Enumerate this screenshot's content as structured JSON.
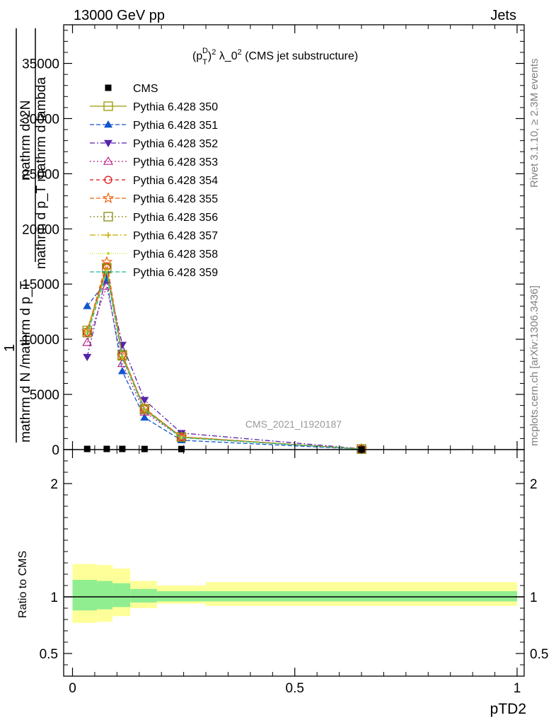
{
  "header": {
    "left": "13000 GeV pp",
    "right": "Jets"
  },
  "side_labels": {
    "rivet": "Rivet 3.1.10, ≥ 2.3M events",
    "mcplots": "mcplots.cern.ch [arXiv:1306.3436]"
  },
  "watermark": "CMS_2021_I1920187",
  "plot_title": "(p_T^D)^2 λ_0^2 (CMS jet substructure)",
  "ylabel_main": {
    "frac_one": "1",
    "denominator": "mathrm d N /mathrm d p_T",
    "numerator_top": "mathrm d^2N",
    "numerator_bottom": "mathrm d p_T mathrm d lambda"
  },
  "ylabel_ratio": "Ratio to CMS",
  "xlabel": "pTD2",
  "colors": {
    "data": "#000000",
    "band_inner": "#90ee90",
    "band_outer": "#ffff99"
  },
  "chart_data": {
    "type": "line",
    "x_axis": {
      "range": [
        -0.02,
        1.02
      ],
      "ticks": [
        0,
        0.5,
        1
      ],
      "tick_labels": [
        "0",
        "0.5",
        "1"
      ]
    },
    "main_y_axis": {
      "range": [
        0,
        38500
      ],
      "ticks": [
        0,
        5000,
        10000,
        15000,
        20000,
        25000,
        30000,
        35000
      ],
      "tick_labels": [
        "0",
        "5000",
        "10000",
        "15000",
        "20000",
        "25000",
        "30000",
        "35000"
      ]
    },
    "ratio_y_axis": {
      "range": [
        0.3,
        2.3
      ],
      "ticks": [
        0.5,
        1,
        2
      ],
      "tick_labels": [
        "0.5",
        "1",
        "2"
      ]
    },
    "x": [
      0.033,
      0.077,
      0.112,
      0.162,
      0.245,
      0.65
    ],
    "data": {
      "name": "CMS",
      "y": [
        60,
        60,
        60,
        55,
        50,
        5
      ]
    },
    "ratio_bands": [
      {
        "xlo": 0.0,
        "xhi": 0.055,
        "inner": [
          0.88,
          1.15
        ],
        "outer": [
          0.77,
          1.29
        ]
      },
      {
        "xlo": 0.055,
        "xhi": 0.09,
        "inner": [
          0.89,
          1.14
        ],
        "outer": [
          0.78,
          1.28
        ]
      },
      {
        "xlo": 0.09,
        "xhi": 0.13,
        "inner": [
          0.91,
          1.12
        ],
        "outer": [
          0.83,
          1.25
        ]
      },
      {
        "xlo": 0.13,
        "xhi": 0.19,
        "inner": [
          0.95,
          1.07
        ],
        "outer": [
          0.9,
          1.14
        ]
      },
      {
        "xlo": 0.19,
        "xhi": 0.3,
        "inner": [
          0.96,
          1.05
        ],
        "outer": [
          0.94,
          1.1
        ]
      },
      {
        "xlo": 0.3,
        "xhi": 1.0,
        "inner": [
          0.96,
          1.05
        ],
        "outer": [
          0.92,
          1.13
        ]
      }
    ],
    "series": [
      {
        "name": "Pythia 6.428 350",
        "color": "#999900",
        "marker": "square-open",
        "dash": "",
        "y": [
          10800,
          16500,
          8600,
          3700,
          1150,
          50
        ]
      },
      {
        "name": "Pythia 6.428 351",
        "color": "#1155cc",
        "marker": "triangle-up",
        "dash": "6,3",
        "y": [
          13000,
          15300,
          7100,
          2900,
          850,
          40
        ]
      },
      {
        "name": "Pythia 6.428 352",
        "color": "#5522aa",
        "marker": "triangle-down",
        "dash": "7,3,2,3",
        "y": [
          8400,
          15900,
          9500,
          4500,
          1500,
          70
        ]
      },
      {
        "name": "Pythia 6.428 353",
        "color": "#bb2288",
        "marker": "triangle-up-open",
        "dash": "2,3",
        "y": [
          9700,
          14800,
          7800,
          3400,
          1100,
          45
        ]
      },
      {
        "name": "Pythia 6.428 354",
        "color": "#dd1111",
        "marker": "circle-open",
        "dash": "5,4",
        "y": [
          10600,
          16600,
          8600,
          3700,
          1150,
          50
        ]
      },
      {
        "name": "Pythia 6.428 355",
        "color": "#ee6611",
        "marker": "star-open",
        "dash": "6,3",
        "y": [
          10700,
          17000,
          8500,
          3750,
          1150,
          50
        ]
      },
      {
        "name": "Pythia 6.428 356",
        "color": "#888811",
        "marker": "square-open",
        "dash": "2,3",
        "y": [
          10600,
          16400,
          8500,
          3650,
          1120,
          50
        ]
      },
      {
        "name": "Pythia 6.428 357",
        "color": "#ccaa00",
        "marker": "cross",
        "dash": "8,3,2,3",
        "y": [
          10700,
          16300,
          8400,
          3600,
          1100,
          50
        ]
      },
      {
        "name": "Pythia 6.428 358",
        "color": "#bbdd22",
        "marker": "dot",
        "dash": "1,2",
        "y": [
          10500,
          16200,
          8400,
          3650,
          1100,
          50
        ]
      },
      {
        "name": "Pythia 6.428 359",
        "color": "#22bb99",
        "marker": "none",
        "dash": "6,3",
        "y": [
          10400,
          16000,
          8300,
          3600,
          1080,
          50
        ]
      }
    ]
  }
}
